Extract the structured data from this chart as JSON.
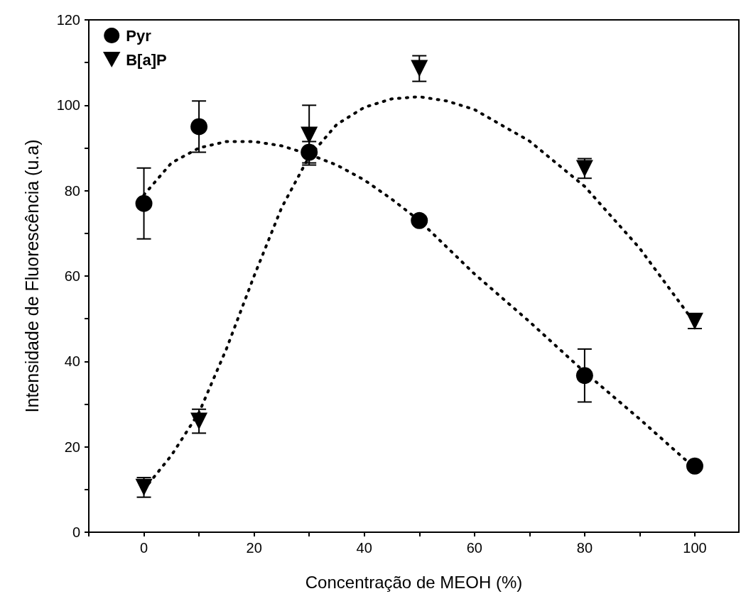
{
  "chart_data": {
    "type": "scatter",
    "xlabel": "Concentração de MEOH (%)",
    "ylabel": "Intensidade de Fluorescência (u.a)",
    "xlim": [
      -10,
      108
    ],
    "xticks": [
      {
        "value": -10,
        "label": null
      },
      0,
      {
        "value": 10,
        "label": null
      },
      20,
      {
        "value": 30,
        "label": null
      },
      40,
      {
        "value": 50,
        "label": null
      },
      60,
      {
        "value": 70,
        "label": null
      },
      80,
      {
        "value": 90,
        "label": null
      },
      100
    ],
    "ylim": [
      0,
      120
    ],
    "yticks": [
      0,
      {
        "value": 10,
        "label": null
      },
      20,
      {
        "value": 30,
        "label": null
      },
      40,
      {
        "value": 50,
        "label": null
      },
      60,
      {
        "value": 70,
        "label": null
      },
      80,
      {
        "value": 90,
        "label": null
      },
      100,
      {
        "value": 110,
        "label": null
      },
      120
    ],
    "grid": false,
    "legend": "top left",
    "series": [
      {
        "name": "Pyr",
        "marker": "circle",
        "color": "#000000",
        "x": [
          0,
          10,
          30,
          50,
          80,
          100
        ],
        "values": [
          77,
          95,
          89,
          73,
          36.7,
          15.5
        ],
        "errors": [
          8.3,
          6,
          2.5,
          null,
          6.2,
          null
        ]
      },
      {
        "name": "B[a]P",
        "marker": "triangle",
        "color": "#000000",
        "x": [
          0,
          10,
          30,
          50,
          80,
          100
        ],
        "values": [
          10.5,
          26,
          93,
          108.6,
          85.2,
          49.4
        ],
        "errors": [
          2.3,
          2.8,
          7,
          3,
          2.3,
          1.7
        ]
      },
      {
        "type": "line",
        "marker": "none",
        "line_style": "dotted",
        "color": "#000000",
        "x": [
          0,
          5,
          10,
          15,
          20,
          25,
          30,
          35,
          40,
          45,
          50,
          60,
          70,
          80,
          90,
          100
        ],
        "values": [
          79,
          86.5,
          90,
          91.5,
          91.5,
          90.5,
          88.5,
          86,
          82.5,
          78,
          73,
          60.5,
          49.3,
          37.5,
          26.5,
          15
        ]
      },
      {
        "type": "line",
        "marker": "none",
        "line_style": "dotted",
        "color": "#000000",
        "x": [
          0,
          5,
          10,
          15,
          20,
          25,
          30,
          35,
          40,
          45,
          50,
          55,
          60,
          70,
          80,
          90,
          100
        ],
        "values": [
          10,
          18,
          28,
          43,
          60,
          76,
          88,
          95.5,
          99.5,
          101.5,
          102,
          101,
          99,
          91.6,
          81,
          66.5,
          49
        ]
      }
    ]
  }
}
